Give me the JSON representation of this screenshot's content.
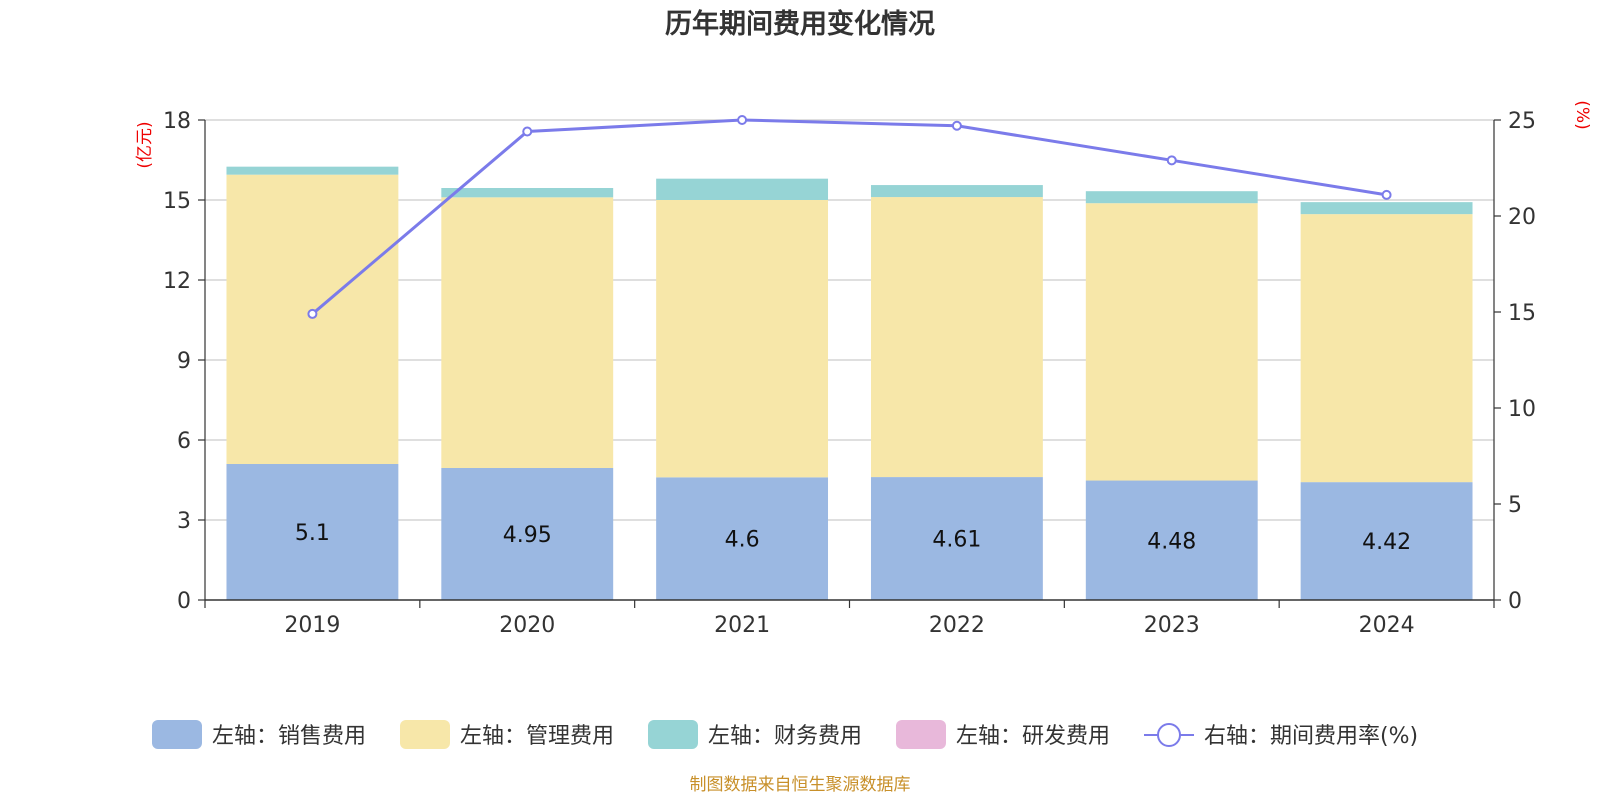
{
  "chart_data": {
    "type": "bar",
    "title": "历年期间费用变化情况",
    "categories": [
      "2019",
      "2020",
      "2021",
      "2022",
      "2023",
      "2024"
    ],
    "left_axis": {
      "unit": "(亿元)",
      "ylim": [
        0,
        18
      ],
      "ticks": [
        "0",
        "3",
        "6",
        "9",
        "12",
        "15",
        "18"
      ]
    },
    "right_axis": {
      "unit": "(%)",
      "ylim": [
        0,
        25
      ],
      "ticks": [
        "0",
        "5",
        "10",
        "15",
        "20",
        "25"
      ]
    },
    "stacked": true,
    "series": [
      {
        "name": "左轴：销售费用",
        "axis": "left",
        "type": "bar",
        "color": "#9bb8e2",
        "values": [
          5.1,
          4.95,
          4.6,
          4.61,
          4.48,
          4.42
        ],
        "labels": [
          "5.1",
          "4.95",
          "4.6",
          "4.61",
          "4.48",
          "4.42"
        ]
      },
      {
        "name": "左轴：管理费用",
        "axis": "left",
        "type": "bar",
        "color": "#f7e7a9",
        "values": [
          10.85,
          10.15,
          10.4,
          10.5,
          10.4,
          10.05
        ]
      },
      {
        "name": "左轴：财务费用",
        "axis": "left",
        "type": "bar",
        "color": "#96d4d5",
        "values": [
          0.3,
          0.35,
          0.8,
          0.45,
          0.45,
          0.45
        ]
      },
      {
        "name": "左轴：研发费用",
        "axis": "left",
        "type": "bar",
        "color": "#e8b8da",
        "values": [
          0,
          0,
          0,
          0,
          0,
          0
        ]
      },
      {
        "name": "右轴：期间费用率(%)",
        "axis": "right",
        "type": "line",
        "color": "#7b7bea",
        "values": [
          14.9,
          24.4,
          25.0,
          24.7,
          22.9,
          21.1
        ]
      }
    ],
    "grid": true,
    "legend_position": "bottom"
  },
  "source_text": "制图数据来自恒生聚源数据库"
}
